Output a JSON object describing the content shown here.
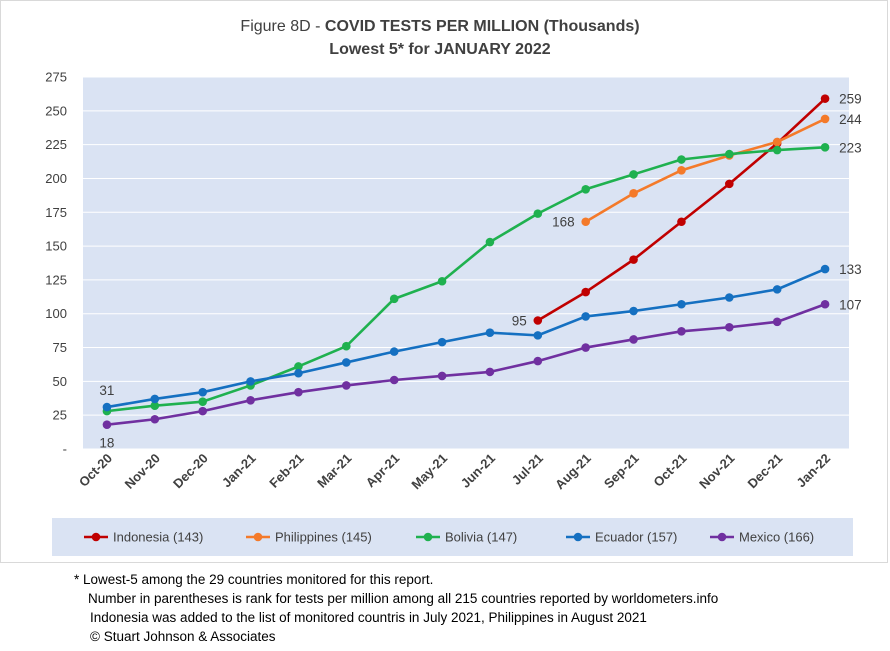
{
  "chart_data": {
    "type": "line",
    "title_prefix": "Figure 8D - ",
    "title_bold": "COVID TESTS PER MILLION (Thousands)",
    "subtitle": "Lowest 5* for JANUARY 2022",
    "categories": [
      "Oct-20",
      "Nov-20",
      "Dec-20",
      "Jan-21",
      "Feb-21",
      "Mar-21",
      "Apr-21",
      "May-21",
      "Jun-21",
      "Jul-21",
      "Aug-21",
      "Sep-21",
      "Oct-21",
      "Nov-21",
      "Dec-21",
      "Jan-22"
    ],
    "yticks": [
      "-",
      "25",
      "50",
      "75",
      "100",
      "125",
      "150",
      "175",
      "200",
      "225",
      "250",
      "275"
    ],
    "ylim": [
      0,
      275
    ],
    "grid": true,
    "legend_position": "bottom",
    "series": [
      {
        "name": "Indonesia (143)",
        "color": "#c00000",
        "values": [
          null,
          null,
          null,
          null,
          null,
          null,
          null,
          null,
          null,
          95,
          116,
          140,
          168,
          196,
          226,
          259
        ]
      },
      {
        "name": "Philippines (145)",
        "color": "#f47a2a",
        "values": [
          null,
          null,
          null,
          null,
          null,
          null,
          null,
          null,
          null,
          null,
          168,
          189,
          206,
          217,
          227,
          244
        ]
      },
      {
        "name": "Bolivia (147)",
        "color": "#1fb14f",
        "values": [
          28,
          32,
          35,
          47,
          61,
          76,
          111,
          124,
          153,
          174,
          192,
          203,
          214,
          218,
          221,
          223
        ]
      },
      {
        "name": "Ecuador (157)",
        "color": "#1570c1",
        "values": [
          31,
          37,
          42,
          50,
          56,
          64,
          72,
          79,
          86,
          84,
          98,
          102,
          107,
          112,
          118,
          133
        ]
      },
      {
        "name": "Mexico (166)",
        "color": "#7030a0",
        "values": [
          18,
          22,
          28,
          36,
          42,
          47,
          51,
          54,
          57,
          65,
          75,
          81,
          87,
          90,
          94,
          107
        ]
      }
    ],
    "data_labels": [
      {
        "series": 3,
        "index": 0,
        "text": "31",
        "pos": "above"
      },
      {
        "series": 4,
        "index": 0,
        "text": "18",
        "pos": "below"
      },
      {
        "series": 0,
        "index": 9,
        "text": "95",
        "pos": "left"
      },
      {
        "series": 1,
        "index": 10,
        "text": "168",
        "pos": "left"
      },
      {
        "series": 0,
        "index": 15,
        "text": "259",
        "pos": "right"
      },
      {
        "series": 1,
        "index": 15,
        "text": "244",
        "pos": "right"
      },
      {
        "series": 2,
        "index": 15,
        "text": "223",
        "pos": "right"
      },
      {
        "series": 3,
        "index": 15,
        "text": "133",
        "pos": "right"
      },
      {
        "series": 4,
        "index": 15,
        "text": "107",
        "pos": "right"
      }
    ]
  },
  "notes": {
    "line1": "* Lowest-5 among the 29 countries monitored for this report.",
    "line2": "Number in parentheses is rank for tests per million among all 215 countries reported by worldometers.info",
    "line3": "Indonesia was added to the list of monitored countris in July 2021, Philippines in August 2021",
    "line4": "© Stuart Johnson & Associates"
  }
}
